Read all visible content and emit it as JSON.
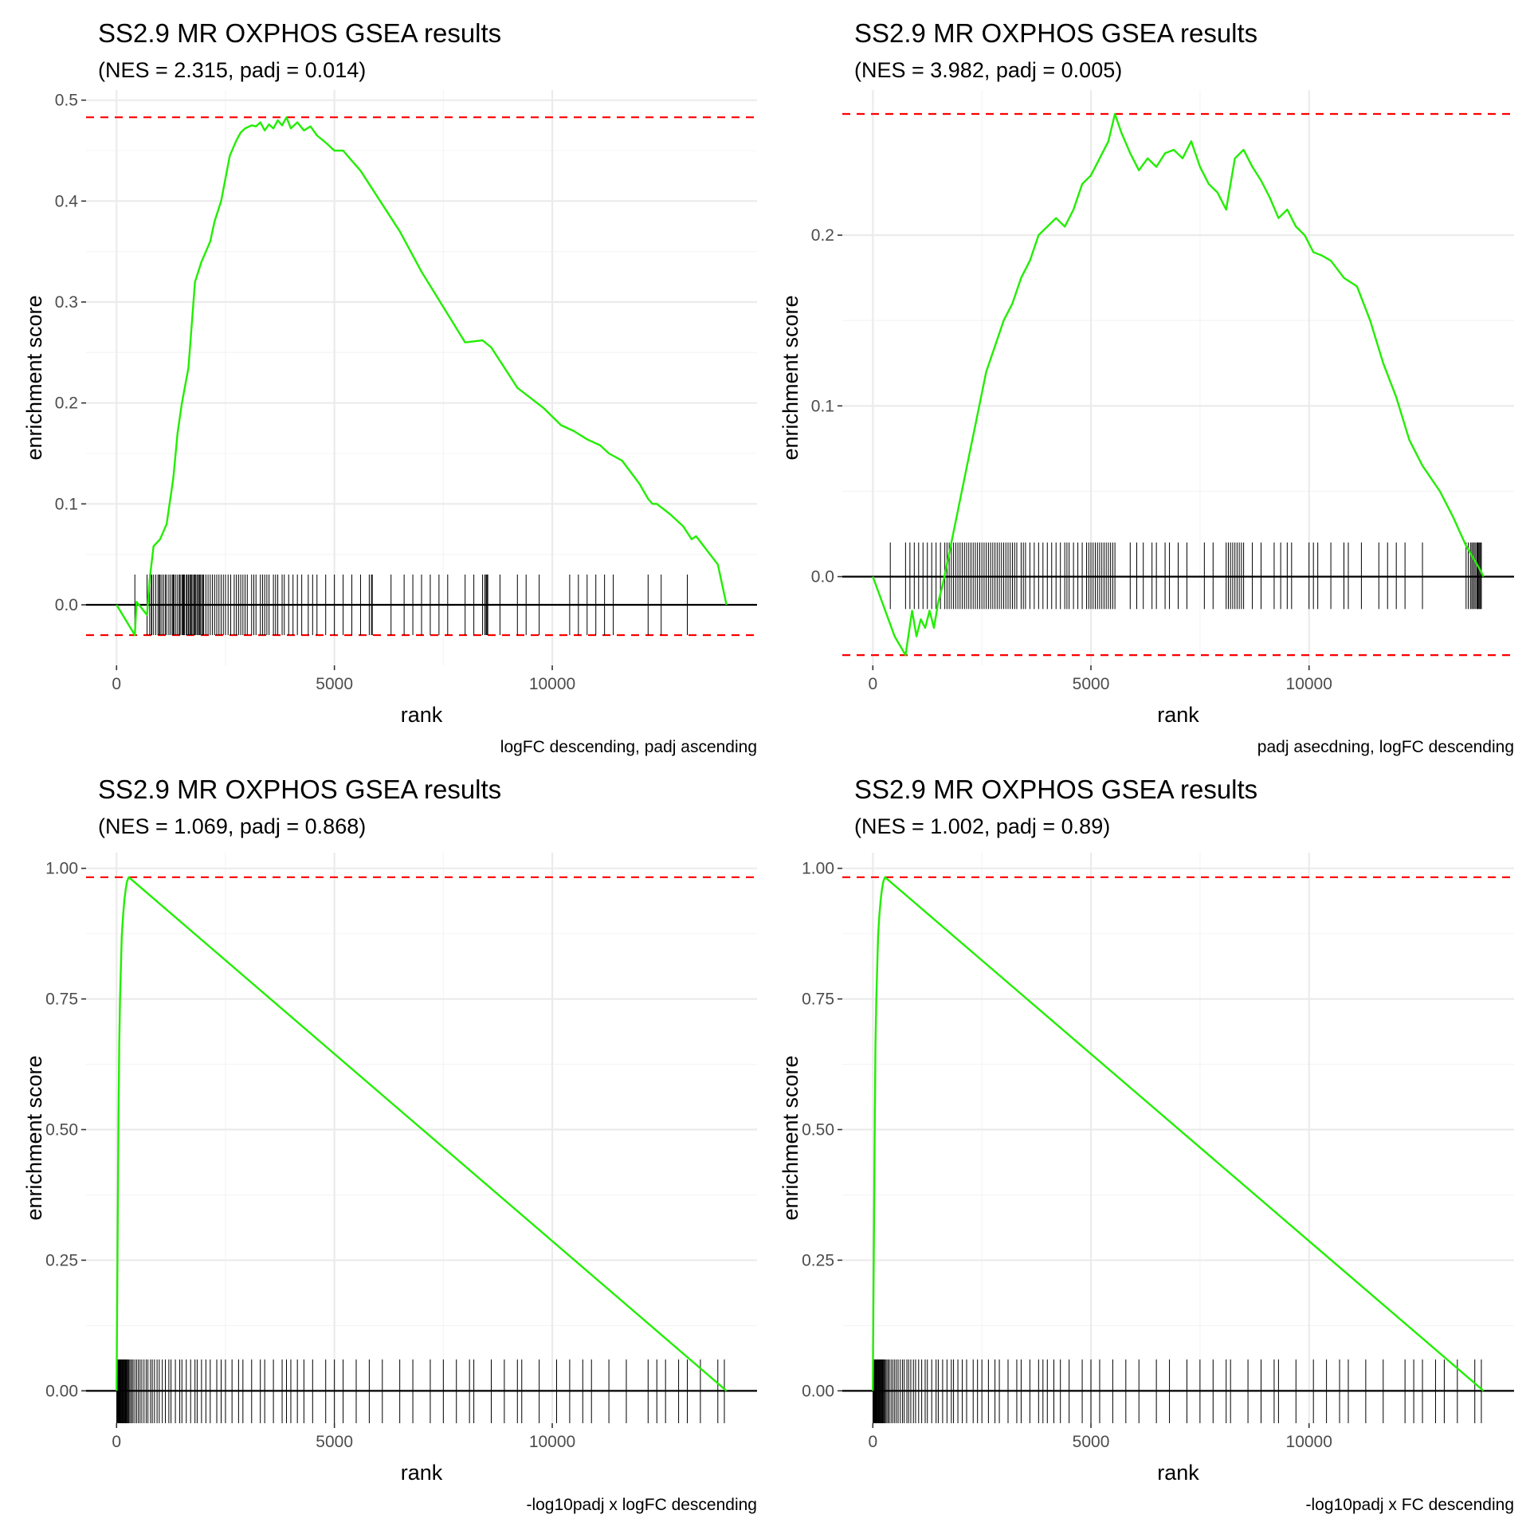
{
  "chart_data": [
    {
      "type": "line",
      "title": "SS2.9 MR OXPHOS GSEA results",
      "subtitle": "(NES = 2.315, padj = 0.014)",
      "caption": "logFC descending, padj ascending",
      "xlabel": "rank",
      "ylabel": "enrichment score",
      "xlim": [
        -700,
        14700
      ],
      "ylim": [
        -0.06,
        0.51
      ],
      "x_ticks": [
        0,
        5000,
        10000
      ],
      "x_tick_labels": [
        "0",
        "5000",
        "10000"
      ],
      "y_ticks": [
        0.0,
        0.1,
        0.2,
        0.3,
        0.4,
        0.5
      ],
      "y_tick_labels": [
        "0.0",
        "0.1",
        "0.2",
        "0.3",
        "0.4",
        "0.5"
      ],
      "max_es": 0.483,
      "min_es": -0.03,
      "tick_band": [
        -0.03,
        0.03
      ],
      "es_color": "#22ee00",
      "ref_color": "#ff0000",
      "es_curve": {
        "x": [
          0,
          420,
          460,
          700,
          760,
          850,
          1000,
          1150,
          1300,
          1400,
          1500,
          1650,
          1800,
          1950,
          2050,
          2150,
          2250,
          2400,
          2600,
          2750,
          2850,
          2950,
          3100,
          3200,
          3300,
          3400,
          3500,
          3600,
          3700,
          3800,
          3900,
          4000,
          4150,
          4300,
          4450,
          4600,
          4800,
          5000,
          5200,
          5400,
          5600,
          5900,
          6500,
          7000,
          7500,
          8000,
          8400,
          8600,
          8900,
          9200,
          9500,
          9800,
          10200,
          10500,
          10800,
          11100,
          11300,
          11600,
          12000,
          12200,
          12300,
          12400,
          12700,
          13000,
          13200,
          13300,
          13800,
          14000
        ],
        "y": [
          0.0,
          -0.03,
          0.003,
          -0.01,
          0.025,
          0.058,
          0.065,
          0.08,
          0.125,
          0.17,
          0.2,
          0.235,
          0.32,
          0.34,
          0.35,
          0.36,
          0.38,
          0.4,
          0.445,
          0.46,
          0.468,
          0.472,
          0.475,
          0.474,
          0.478,
          0.47,
          0.476,
          0.472,
          0.48,
          0.475,
          0.483,
          0.472,
          0.478,
          0.47,
          0.474,
          0.465,
          0.458,
          0.45,
          0.45,
          0.44,
          0.43,
          0.41,
          0.37,
          0.33,
          0.295,
          0.26,
          0.262,
          0.255,
          0.235,
          0.215,
          0.205,
          0.195,
          0.178,
          0.172,
          0.164,
          0.158,
          0.15,
          0.143,
          0.12,
          0.105,
          0.1,
          0.1,
          0.09,
          0.078,
          0.065,
          0.068,
          0.04,
          0.0
        ]
      },
      "hit_ranks": [
        420,
        700,
        760,
        800,
        810,
        850,
        900,
        950,
        980,
        1000,
        1040,
        1080,
        1120,
        1150,
        1200,
        1240,
        1280,
        1300,
        1320,
        1360,
        1400,
        1440,
        1460,
        1500,
        1520,
        1540,
        1560,
        1600,
        1620,
        1650,
        1680,
        1700,
        1720,
        1750,
        1780,
        1800,
        1820,
        1850,
        1880,
        1900,
        1920,
        1950,
        1980,
        2000,
        2050,
        2100,
        2150,
        2200,
        2250,
        2300,
        2350,
        2400,
        2450,
        2500,
        2560,
        2620,
        2700,
        2750,
        2800,
        2850,
        2900,
        2950,
        3000,
        3100,
        3150,
        3200,
        3300,
        3350,
        3400,
        3450,
        3500,
        3600,
        3650,
        3700,
        3800,
        3850,
        3950,
        4050,
        4150,
        4250,
        4400,
        4500,
        4600,
        4800,
        5000,
        5200,
        5400,
        5600,
        5800,
        5850,
        5870,
        6300,
        6600,
        6800,
        7000,
        7200,
        7400,
        7600,
        8000,
        8200,
        8400,
        8450,
        8480,
        8500,
        8520,
        8800,
        9200,
        9400,
        9700,
        10400,
        10600,
        10800,
        11000,
        11200,
        11400,
        12200,
        12500,
        13100
      ]
    },
    {
      "type": "line",
      "title": "SS2.9 MR OXPHOS GSEA results",
      "subtitle": "(NES = 3.982, padj = 0.005)",
      "caption": "padj asecdning, logFC descending",
      "xlabel": "rank",
      "ylabel": "enrichment score",
      "xlim": [
        -700,
        14700
      ],
      "ylim": [
        -0.052,
        0.285
      ],
      "x_ticks": [
        0,
        5000,
        10000
      ],
      "x_tick_labels": [
        "0",
        "5000",
        "10000"
      ],
      "y_ticks": [
        0.0,
        0.1,
        0.2
      ],
      "y_tick_labels": [
        "0.0",
        "0.1",
        "0.2"
      ],
      "max_es": 0.271,
      "min_es": -0.046,
      "tick_band": [
        -0.019,
        0.02
      ],
      "es_color": "#22ee00",
      "ref_color": "#ff0000",
      "es_curve": {
        "x": [
          0,
          500,
          750,
          900,
          1000,
          1100,
          1200,
          1300,
          1400,
          1500,
          1600,
          1800,
          2000,
          2200,
          2400,
          2600,
          2800,
          3000,
          3200,
          3400,
          3600,
          3800,
          4000,
          4200,
          4400,
          4600,
          4800,
          5000,
          5200,
          5400,
          5550,
          5700,
          5900,
          6100,
          6300,
          6500,
          6700,
          6900,
          7100,
          7300,
          7500,
          7700,
          7900,
          8100,
          8200,
          8300,
          8500,
          8700,
          8900,
          9100,
          9300,
          9500,
          9700,
          9900,
          10100,
          10300,
          10500,
          10800,
          11100,
          11400,
          11700,
          12000,
          12300,
          12600,
          13000,
          13300,
          13600,
          13900,
          14000
        ],
        "y": [
          0.0,
          -0.035,
          -0.046,
          -0.02,
          -0.035,
          -0.025,
          -0.03,
          -0.02,
          -0.03,
          -0.015,
          -0.005,
          0.02,
          0.045,
          0.07,
          0.095,
          0.12,
          0.135,
          0.15,
          0.16,
          0.175,
          0.185,
          0.2,
          0.205,
          0.21,
          0.205,
          0.215,
          0.23,
          0.235,
          0.245,
          0.255,
          0.271,
          0.26,
          0.248,
          0.238,
          0.245,
          0.24,
          0.248,
          0.25,
          0.245,
          0.255,
          0.24,
          0.23,
          0.225,
          0.215,
          0.23,
          0.245,
          0.25,
          0.24,
          0.232,
          0.222,
          0.21,
          0.215,
          0.205,
          0.2,
          0.19,
          0.188,
          0.185,
          0.175,
          0.17,
          0.15,
          0.125,
          0.105,
          0.08,
          0.065,
          0.05,
          0.035,
          0.018,
          0.005,
          0.0
        ]
      },
      "hit_ranks": [
        400,
        750,
        850,
        950,
        1050,
        1150,
        1250,
        1350,
        1450,
        1550,
        1650,
        1700,
        1750,
        1800,
        1850,
        1900,
        1950,
        2000,
        2050,
        2100,
        2150,
        2200,
        2250,
        2300,
        2350,
        2400,
        2450,
        2500,
        2550,
        2600,
        2650,
        2700,
        2750,
        2800,
        2850,
        2900,
        2950,
        3000,
        3050,
        3100,
        3150,
        3200,
        3250,
        3300,
        3400,
        3450,
        3500,
        3600,
        3700,
        3800,
        3900,
        4000,
        4100,
        4200,
        4300,
        4400,
        4450,
        4500,
        4600,
        4700,
        4800,
        4900,
        4950,
        5000,
        5050,
        5100,
        5150,
        5200,
        5250,
        5300,
        5350,
        5400,
        5450,
        5500,
        5550,
        5900,
        6050,
        6200,
        6400,
        6500,
        6700,
        6800,
        7000,
        7200,
        7600,
        7800,
        8100,
        8150,
        8200,
        8250,
        8300,
        8350,
        8400,
        8450,
        8500,
        8700,
        8900,
        9200,
        9350,
        9500,
        9600,
        10000,
        10100,
        10200,
        10500,
        10800,
        10900,
        11200,
        11600,
        11800,
        12000,
        12200,
        12600,
        13600,
        13650,
        13700,
        13730,
        13760,
        13790,
        13820,
        13850,
        13870,
        13890,
        13910,
        13930,
        13950
      ]
    },
    {
      "type": "line",
      "title": "SS2.9 MR OXPHOS GSEA results",
      "subtitle": "(NES = 1.069, padj = 0.868)",
      "caption": "-log10padj x logFC descending",
      "xlabel": "rank",
      "ylabel": "enrichment score",
      "xlim": [
        -700,
        14700
      ],
      "ylim": [
        -0.062,
        1.03
      ],
      "x_ticks": [
        0,
        5000,
        10000
      ],
      "x_tick_labels": [
        "0",
        "5000",
        "10000"
      ],
      "y_ticks": [
        0.0,
        0.25,
        0.5,
        0.75,
        1.0
      ],
      "y_tick_labels": [
        "0.00",
        "0.25",
        "0.50",
        "0.75",
        "1.00"
      ],
      "max_es": 0.983,
      "min_es": null,
      "tick_band": [
        -0.062,
        0.06
      ],
      "es_color": "#22ee00",
      "ref_color": "#ff0000",
      "es_curve": {
        "x": [
          0,
          15,
          30,
          45,
          60,
          80,
          100,
          120,
          150,
          180,
          210,
          240,
          280,
          14000
        ],
        "y": [
          0.0,
          0.18,
          0.36,
          0.52,
          0.66,
          0.75,
          0.81,
          0.87,
          0.91,
          0.94,
          0.96,
          0.975,
          0.983,
          0.0
        ]
      },
      "hit_ranks": [
        5,
        15,
        25,
        35,
        45,
        55,
        65,
        75,
        85,
        95,
        110,
        125,
        140,
        155,
        170,
        185,
        200,
        215,
        230,
        250,
        270,
        290,
        320,
        350,
        380,
        420,
        460,
        500,
        540,
        580,
        630,
        680,
        720,
        780,
        820,
        870,
        930,
        980,
        1050,
        1120,
        1200,
        1250,
        1350,
        1450,
        1500,
        1600,
        1700,
        1800,
        1850,
        1950,
        2050,
        2150,
        2300,
        2400,
        2500,
        2650,
        2800,
        2900,
        3100,
        3300,
        3400,
        3600,
        3800,
        3900,
        4000,
        4150,
        4300,
        4500,
        4800,
        5000,
        5200,
        5500,
        5800,
        6100,
        6500,
        6800,
        7200,
        7500,
        7800,
        8100,
        8200,
        8600,
        8900,
        9200,
        9300,
        9700,
        10100,
        10400,
        10700,
        10900,
        11300,
        11700,
        12200,
        12400,
        12600,
        12900,
        13100,
        13400,
        13800,
        13950
      ]
    },
    {
      "type": "line",
      "title": "SS2.9 MR OXPHOS GSEA results",
      "subtitle": "(NES = 1.002, padj = 0.89)",
      "caption": "-log10padj x FC descending",
      "xlabel": "rank",
      "ylabel": "enrichment score",
      "xlim": [
        -700,
        14700
      ],
      "ylim": [
        -0.062,
        1.03
      ],
      "x_ticks": [
        0,
        5000,
        10000
      ],
      "x_tick_labels": [
        "0",
        "5000",
        "10000"
      ],
      "y_ticks": [
        0.0,
        0.25,
        0.5,
        0.75,
        1.0
      ],
      "y_tick_labels": [
        "0.00",
        "0.25",
        "0.50",
        "0.75",
        "1.00"
      ],
      "max_es": 0.983,
      "min_es": null,
      "tick_band": [
        -0.062,
        0.06
      ],
      "es_color": "#22ee00",
      "ref_color": "#ff0000",
      "es_curve": {
        "x": [
          0,
          15,
          30,
          45,
          60,
          80,
          100,
          120,
          150,
          180,
          210,
          240,
          280,
          14000
        ],
        "y": [
          0.0,
          0.18,
          0.36,
          0.52,
          0.66,
          0.75,
          0.81,
          0.87,
          0.91,
          0.94,
          0.96,
          0.975,
          0.983,
          0.0
        ]
      },
      "hit_ranks": [
        5,
        15,
        25,
        35,
        45,
        55,
        65,
        75,
        85,
        95,
        110,
        125,
        140,
        155,
        170,
        185,
        200,
        215,
        230,
        250,
        270,
        290,
        320,
        350,
        380,
        420,
        460,
        500,
        540,
        580,
        630,
        680,
        720,
        780,
        820,
        870,
        930,
        980,
        1050,
        1120,
        1200,
        1250,
        1350,
        1450,
        1500,
        1600,
        1700,
        1800,
        1850,
        1950,
        2050,
        2150,
        2300,
        2400,
        2500,
        2650,
        2800,
        2900,
        3100,
        3300,
        3400,
        3600,
        3800,
        3900,
        4000,
        4150,
        4300,
        4500,
        4800,
        5000,
        5200,
        5500,
        5800,
        6100,
        6500,
        6800,
        7200,
        7500,
        7800,
        8100,
        8200,
        8600,
        8900,
        9200,
        9300,
        9700,
        10100,
        10400,
        10700,
        10900,
        11300,
        11700,
        12200,
        12400,
        12600,
        12900,
        13100,
        13400,
        13800,
        13950
      ]
    }
  ]
}
